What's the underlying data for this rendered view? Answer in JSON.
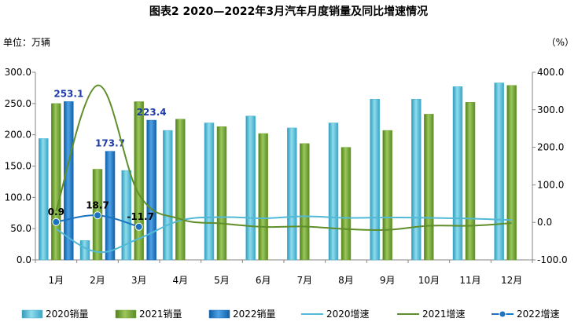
{
  "chart_data": {
    "type": "bar",
    "title": "图表2    2020—2022年3月汽车月度销量及同比增速情况",
    "ylabel_left": "单位：万辆",
    "ylabel_right": "（%）",
    "categories": [
      "1月",
      "2月",
      "3月",
      "4月",
      "5月",
      "6月",
      "7月",
      "8月",
      "9月",
      "10月",
      "11月",
      "12月"
    ],
    "y_left": {
      "min": 0,
      "max": 300,
      "ticks": [
        "0.0",
        "50.0",
        "100.0",
        "150.0",
        "200.0",
        "250.0",
        "300.0"
      ]
    },
    "y_right": {
      "min": -100,
      "max": 400,
      "ticks": [
        "-100.0",
        "0.0",
        "100.0",
        "200.0",
        "300.0",
        "400.0"
      ]
    },
    "bar_series": [
      {
        "name": "2020销量",
        "color": "#4bb8d4",
        "values": [
          194,
          31,
          143,
          207,
          219,
          230,
          211,
          219,
          257,
          257,
          277,
          283
        ]
      },
      {
        "name": "2021销量",
        "color": "#77a33a",
        "values": [
          250,
          145,
          253,
          225,
          213,
          202,
          186,
          180,
          207,
          233,
          252,
          279
        ]
      },
      {
        "name": "2022销量",
        "color": "#1b73c2",
        "values": [
          253.1,
          173.7,
          223.4,
          null,
          null,
          null,
          null,
          null,
          null,
          null,
          null,
          null
        ]
      }
    ],
    "line_series": [
      {
        "name": "2020增速",
        "color": "#52b9d6",
        "values": [
          -18,
          -79,
          -43,
          5,
          14,
          11,
          16,
          12,
          13,
          12,
          10,
          6
        ]
      },
      {
        "name": "2021增速",
        "color": "#5f8e2a",
        "values": [
          30,
          365,
          75,
          9,
          -3,
          -12,
          -11,
          -18,
          -20,
          -9,
          -9,
          -2
        ]
      },
      {
        "name": "2022增速",
        "color": "#1b73c2",
        "values": [
          0.9,
          18.7,
          -11.7,
          null,
          null,
          null,
          null,
          null,
          null,
          null,
          null,
          null
        ]
      }
    ],
    "bar_labels": [
      "253.1",
      "173.7",
      "223.4"
    ],
    "line_labels": [
      "0.9",
      "18.7",
      "-11.7"
    ],
    "legend_placement": "bottom",
    "grid": false
  }
}
